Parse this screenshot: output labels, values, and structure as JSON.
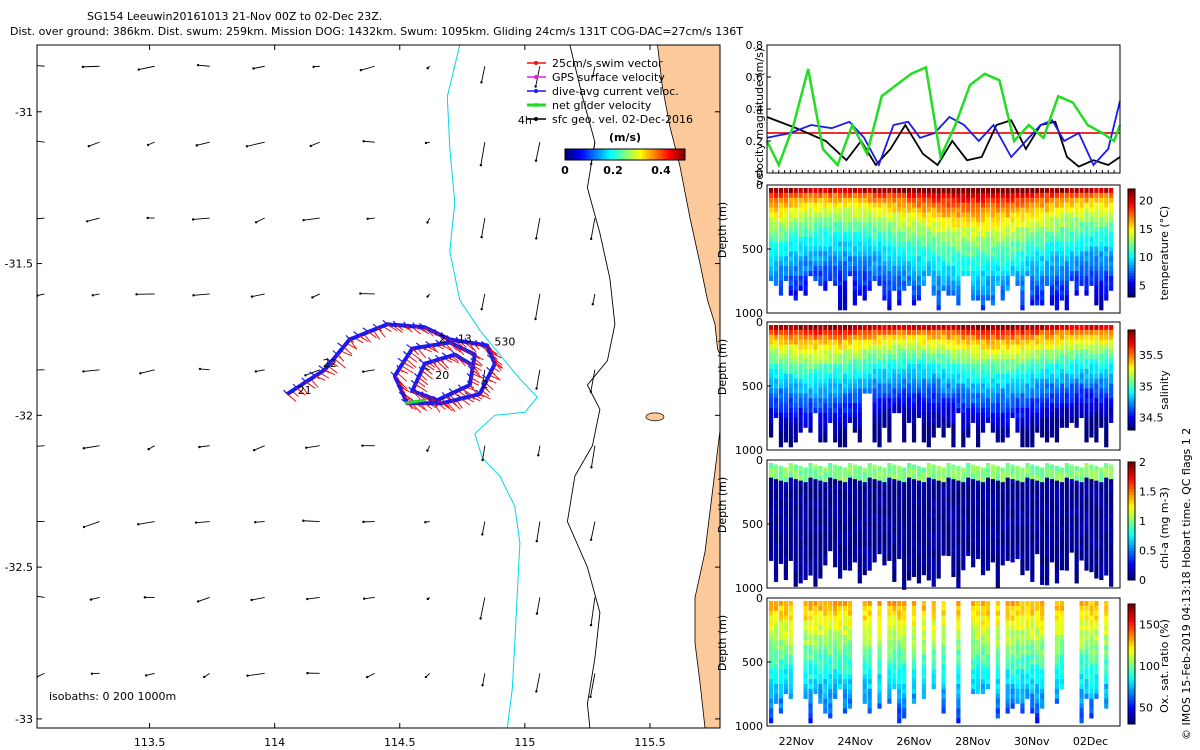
{
  "figure": {
    "title_line1": "SG154 Leeuwin20161013 21-Nov 00Z to 02-Dec 23Z.",
    "title_line2": "Dist. over ground: 386km. Dist. swum: 259km. Mission DOG: 1432km. Swum: 1095km. Gliding 24cm/s 131T COG-DAC=27cm/s 136T",
    "credit": "© IMOS 15-Feb-2019 04:13:18 Hobart time. QC flags 1  2",
    "colors": {
      "coast_fill": "#fbc99a",
      "isobath_200": "#00d8e8",
      "isobath_1000": "#000000",
      "track_red": "#ee1111",
      "track_blue": "#1a1aee",
      "net_green": "#22dd22"
    }
  },
  "chart_data": [
    {
      "id": "map",
      "type": "scatter",
      "title": "",
      "xlabel": "",
      "ylabel": "",
      "xlim": [
        113.05,
        115.78
      ],
      "ylim": [
        -33.03,
        -30.78
      ],
      "xticks": [
        113.5,
        114,
        114.5,
        115,
        115.5
      ],
      "yticks": [
        -31,
        -31.5,
        -32,
        -32.5,
        -33
      ],
      "xtick_labels": [
        "113.5",
        "114",
        "114.5",
        "115",
        "115.5"
      ],
      "ytick_labels": [
        "-31",
        "-31.5",
        "-32",
        "-32.5",
        "-33"
      ],
      "legend": {
        "placement": "top-right",
        "entries": [
          {
            "name": "25cm/s swim vector",
            "color": "#ee1111"
          },
          {
            "name": "GPS surface velocity",
            "color": "#dd22dd"
          },
          {
            "name": "dive-avg current veloc.",
            "color": "#1a1aee"
          },
          {
            "name": "net glider velocity",
            "color": "#22dd22"
          },
          {
            "name": "sfc geo. vel. 02-Dec-2016",
            "color": "#000000"
          }
        ]
      },
      "colorbar": {
        "label": "(m/s)",
        "ticks": [
          0,
          0.2,
          0.4
        ],
        "tick_labels": [
          "0",
          "0.2",
          "0.4"
        ],
        "range": [
          0,
          0.5
        ]
      },
      "isobath_note": "isobaths: 0   200  1000m",
      "annotations": [
        {
          "text": "4h",
          "x": 115.0,
          "y": -31.04
        },
        {
          "text": "21",
          "x": 114.12,
          "y": -31.93
        },
        {
          "text": "22",
          "x": 114.22,
          "y": -31.84
        },
        {
          "text": "2",
          "x": 114.67,
          "y": -31.76
        },
        {
          "text": "13",
          "x": 114.76,
          "y": -31.76
        },
        {
          "text": "530",
          "x": 114.92,
          "y": -31.77
        },
        {
          "text": "20",
          "x": 114.67,
          "y": -31.88
        },
        {
          "text": "2",
          "x": 114.84,
          "y": -31.91
        }
      ],
      "track_waypoints": [
        [
          114.05,
          -31.93
        ],
        [
          114.2,
          -31.85
        ],
        [
          114.3,
          -31.75
        ],
        [
          114.45,
          -31.7
        ],
        [
          114.6,
          -31.71
        ],
        [
          114.7,
          -31.75
        ],
        [
          114.85,
          -31.77
        ],
        [
          114.88,
          -31.83
        ],
        [
          114.82,
          -31.93
        ],
        [
          114.67,
          -31.96
        ],
        [
          114.53,
          -31.96
        ],
        [
          114.48,
          -31.87
        ],
        [
          114.55,
          -31.78
        ],
        [
          114.7,
          -31.76
        ],
        [
          114.8,
          -31.8
        ],
        [
          114.78,
          -31.9
        ],
        [
          114.65,
          -31.95
        ],
        [
          114.55,
          -31.92
        ],
        [
          114.6,
          -31.83
        ],
        [
          114.72,
          -31.8
        ],
        [
          114.8,
          -31.84
        ]
      ],
      "coastline": [
        [
          115.78,
          -30.78
        ],
        [
          115.53,
          -30.78
        ],
        [
          115.55,
          -30.92
        ],
        [
          115.58,
          -31.05
        ],
        [
          115.62,
          -31.18
        ],
        [
          115.66,
          -31.35
        ],
        [
          115.7,
          -31.5
        ],
        [
          115.73,
          -31.62
        ],
        [
          115.76,
          -31.7
        ],
        [
          115.77,
          -31.78
        ],
        [
          115.78,
          -31.8
        ]
      ],
      "coastline_south": [
        [
          115.78,
          -32.05
        ],
        [
          115.75,
          -32.25
        ],
        [
          115.72,
          -32.45
        ],
        [
          115.68,
          -32.6
        ],
        [
          115.68,
          -32.75
        ],
        [
          115.7,
          -32.88
        ],
        [
          115.72,
          -33.03
        ],
        [
          115.78,
          -33.03
        ]
      ],
      "isobath_200m": [
        [
          114.74,
          -30.78
        ],
        [
          114.69,
          -30.95
        ],
        [
          114.7,
          -31.12
        ],
        [
          114.72,
          -31.3
        ],
        [
          114.7,
          -31.46
        ],
        [
          114.74,
          -31.62
        ],
        [
          114.82,
          -31.72
        ],
        [
          114.9,
          -31.8
        ],
        [
          114.98,
          -31.88
        ],
        [
          115.05,
          -31.94
        ],
        [
          115.0,
          -31.99
        ],
        [
          114.88,
          -32.0
        ],
        [
          114.8,
          -32.06
        ],
        [
          114.83,
          -32.14
        ],
        [
          114.9,
          -32.2
        ],
        [
          114.96,
          -32.3
        ],
        [
          114.98,
          -32.42
        ],
        [
          114.97,
          -32.58
        ],
        [
          114.96,
          -32.75
        ],
        [
          114.95,
          -32.9
        ],
        [
          114.93,
          -33.03
        ]
      ],
      "isobath_1000m": [
        [
          115.18,
          -30.78
        ],
        [
          115.23,
          -30.95
        ],
        [
          115.28,
          -31.1
        ],
        [
          115.25,
          -31.25
        ],
        [
          115.3,
          -31.4
        ],
        [
          115.34,
          -31.55
        ],
        [
          115.36,
          -31.7
        ],
        [
          115.33,
          -31.82
        ],
        [
          115.25,
          -31.9
        ],
        [
          115.3,
          -31.98
        ],
        [
          115.27,
          -32.1
        ],
        [
          115.2,
          -32.2
        ],
        [
          115.17,
          -32.35
        ],
        [
          115.25,
          -32.5
        ],
        [
          115.3,
          -32.65
        ],
        [
          115.28,
          -32.8
        ],
        [
          115.25,
          -32.95
        ],
        [
          115.26,
          -33.03
        ]
      ]
    },
    {
      "id": "velocity",
      "type": "line",
      "title": "",
      "xlabel": "",
      "ylabel": "velocity magnitude (m/s)",
      "xlim": [
        0,
        12
      ],
      "ylim": [
        0,
        0.8
      ],
      "yticks": [
        0,
        0.2,
        0.4,
        0.6,
        0.8
      ],
      "ytick_labels": [
        "0",
        "0.2",
        "0.4",
        "0.6",
        "0.8"
      ],
      "series": [
        {
          "color": "#ee1111",
          "x": [
            0,
            12
          ],
          "y": [
            0.25,
            0.25
          ]
        },
        {
          "color": "#000000",
          "x": [
            0,
            1,
            2,
            2.7,
            3.2,
            3.7,
            4.2,
            4.7,
            5.3,
            5.8,
            6.3,
            6.8,
            7.3,
            7.8,
            8.3,
            8.8,
            9.3,
            9.8,
            10.2,
            10.6,
            11.1,
            11.6,
            12
          ],
          "y": [
            0.35,
            0.28,
            0.2,
            0.08,
            0.2,
            0.05,
            0.15,
            0.3,
            0.12,
            0.05,
            0.2,
            0.08,
            0.1,
            0.3,
            0.33,
            0.15,
            0.3,
            0.32,
            0.1,
            0.04,
            0.08,
            0.05,
            0.1
          ]
        },
        {
          "color": "#1a1aee",
          "x": [
            0,
            0.8,
            1.5,
            2.2,
            2.8,
            3.3,
            3.8,
            4.3,
            4.8,
            5.2,
            5.7,
            6.2,
            6.7,
            7.2,
            7.7,
            8.3,
            8.8,
            9.3,
            9.7,
            10.1,
            10.6,
            11.1,
            11.6,
            12
          ],
          "y": [
            0.22,
            0.25,
            0.3,
            0.28,
            0.32,
            0.22,
            0.05,
            0.3,
            0.32,
            0.22,
            0.25,
            0.35,
            0.3,
            0.2,
            0.3,
            0.1,
            0.2,
            0.3,
            0.33,
            0.2,
            0.25,
            0.05,
            0.15,
            0.45
          ]
        },
        {
          "color": "#22dd22",
          "x": [
            0,
            0.4,
            0.9,
            1.4,
            1.9,
            2.4,
            2.9,
            3.4,
            3.9,
            4.4,
            4.9,
            5.4,
            5.9,
            6.4,
            6.9,
            7.4,
            7.9,
            8.4,
            8.9,
            9.4,
            9.9,
            10.4,
            10.9,
            11.4,
            11.8,
            12
          ],
          "y": [
            0.2,
            0.05,
            0.3,
            0.65,
            0.15,
            0.05,
            0.3,
            0.12,
            0.48,
            0.55,
            0.62,
            0.66,
            0.1,
            0.3,
            0.55,
            0.62,
            0.58,
            0.2,
            0.3,
            0.22,
            0.48,
            0.44,
            0.3,
            0.25,
            0.2,
            0.3
          ]
        }
      ]
    },
    {
      "id": "temperature",
      "type": "heatmap",
      "ylabel": "Depth (m)",
      "yticks": [
        0,
        500,
        1000
      ],
      "ytick_labels": [
        "0",
        "500",
        "1000"
      ],
      "colorbar_label": "temperature (°C)",
      "colorbar_ticks": [
        5,
        10,
        15,
        20
      ],
      "colorbar_tick_labels": [
        "5",
        "10",
        "15",
        "20"
      ],
      "color_range": [
        3,
        22
      ]
    },
    {
      "id": "salinity",
      "type": "heatmap",
      "ylabel": "Depth (m)",
      "yticks": [
        0,
        500,
        1000
      ],
      "ytick_labels": [
        "0",
        "500",
        "1000"
      ],
      "colorbar_label": "salinity",
      "colorbar_ticks": [
        34.5,
        35,
        35.5
      ],
      "colorbar_tick_labels": [
        "34.5",
        "35",
        "35.5"
      ],
      "color_range": [
        34.3,
        35.9
      ]
    },
    {
      "id": "chla",
      "type": "heatmap",
      "ylabel": "Depth (m)",
      "yticks": [
        0,
        500,
        1000
      ],
      "ytick_labels": [
        "0",
        "500",
        "1000"
      ],
      "colorbar_label": "chl-a (mg m-3)",
      "colorbar_ticks": [
        0,
        0.5,
        1,
        1.5,
        2
      ],
      "colorbar_tick_labels": [
        "0",
        "0.5",
        "1",
        "1.5",
        "2"
      ],
      "color_range": [
        0,
        2
      ]
    },
    {
      "id": "oxygen",
      "type": "heatmap",
      "ylabel": "Depth (m)",
      "yticks": [
        0,
        500,
        1000
      ],
      "ytick_labels": [
        "0",
        "500",
        "1000"
      ],
      "colorbar_label": "Ox. sat. ratio (%)",
      "colorbar_ticks": [
        50,
        100,
        150
      ],
      "colorbar_tick_labels": [
        "50",
        "100",
        "150"
      ],
      "color_range": [
        30,
        175
      ],
      "xtick_labels": [
        "22Nov",
        "24Nov",
        "26Nov",
        "28Nov",
        "30Nov",
        "02Dec"
      ],
      "xticks": [
        1,
        3,
        5,
        7,
        9,
        11
      ]
    }
  ]
}
